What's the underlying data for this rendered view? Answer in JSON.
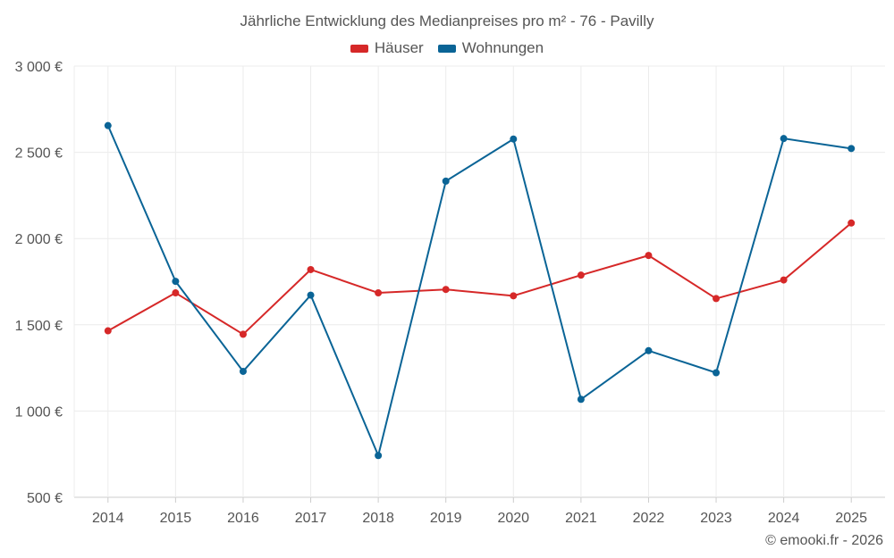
{
  "chart_data": {
    "type": "line",
    "title": "Jährliche Entwicklung des Medianpreises pro m² - 76 - Pavilly",
    "x": [
      "2014",
      "2015",
      "2016",
      "2017",
      "2018",
      "2019",
      "2020",
      "2021",
      "2022",
      "2023",
      "2024",
      "2025"
    ],
    "series": [
      {
        "name": "Häuser",
        "color": "#d62828",
        "values": [
          1465,
          1685,
          1445,
          1820,
          1685,
          1705,
          1668,
          1788,
          1902,
          1652,
          1760,
          2090
        ]
      },
      {
        "name": "Wohnungen",
        "color": "#0a6496",
        "values": [
          2655,
          1752,
          1230,
          1672,
          742,
          2333,
          2577,
          1068,
          1350,
          1222,
          2580,
          2522
        ]
      }
    ],
    "ylim": [
      500,
      3000
    ],
    "yticks": [
      500,
      1000,
      1500,
      2000,
      2500,
      3000
    ],
    "ytick_labels": [
      "500 €",
      "1 000 €",
      "1 500 €",
      "2 000 €",
      "2 500 €",
      "3 000 €"
    ],
    "xlabel": "",
    "ylabel": "",
    "grid": true,
    "legend_position": "top-center"
  },
  "credit": "© emooki.fr - 2026"
}
